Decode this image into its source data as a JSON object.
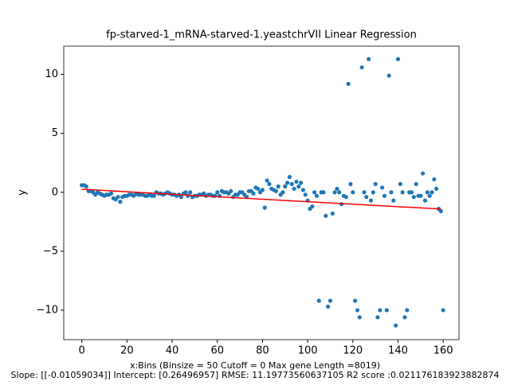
{
  "chart_data": {
    "type": "scatter",
    "title": "fp-starved-1_mRNA-starved-1.yeastchrVII Linear Regression",
    "xlabel": [
      "x:Bins  (Binsize = 50 Cutoff = 0 Max gene Length =8019)",
      "Slope: [[-0.01059034]] Intercept: [0.26496957] RMSE: 11.19773560637105 R2 score :0.021176183923882874"
    ],
    "ylabel": "y",
    "xlim": [
      -8,
      167
    ],
    "ylim": [
      -12.5,
      12.4
    ],
    "xticks": [
      0,
      20,
      40,
      60,
      80,
      100,
      120,
      140,
      160
    ],
    "yticks": [
      {
        "value": -10,
        "label": "−10"
      },
      {
        "value": -5,
        "label": "−5"
      },
      0,
      5,
      10
    ],
    "color": "#1f77b4",
    "x": [
      0,
      1,
      2,
      3,
      4,
      5,
      6,
      7,
      8,
      9,
      10,
      11,
      12,
      13,
      14,
      15,
      16,
      17,
      18,
      19,
      20,
      21,
      22,
      23,
      24,
      25,
      26,
      27,
      28,
      29,
      30,
      31,
      32,
      33,
      34,
      35,
      36,
      37,
      38,
      39,
      40,
      41,
      42,
      43,
      44,
      45,
      46,
      47,
      48,
      49,
      50,
      51,
      52,
      53,
      54,
      55,
      56,
      57,
      58,
      59,
      60,
      61,
      62,
      63,
      64,
      65,
      66,
      67,
      68,
      69,
      70,
      71,
      72,
      73,
      74,
      75,
      76,
      77,
      78,
      79,
      80,
      81,
      82,
      83,
      84,
      85,
      86,
      87,
      88,
      89,
      90,
      91,
      92,
      93,
      94,
      95,
      96,
      97,
      98,
      99,
      100,
      101,
      102,
      103,
      104,
      105,
      106,
      107,
      108,
      109,
      110,
      111,
      112,
      113,
      114,
      115,
      116,
      117,
      118,
      119,
      120,
      121,
      122,
      123,
      124,
      125,
      126,
      127,
      128,
      129,
      130,
      131,
      132,
      133,
      134,
      135,
      136,
      137,
      138,
      139,
      140,
      141,
      142,
      143,
      144,
      145,
      146,
      147,
      148,
      149,
      150,
      151,
      152,
      153,
      154,
      155,
      156,
      157,
      158,
      159,
      160
    ],
    "values": [
      0.6,
      0.6,
      0.5,
      0.1,
      0.1,
      0,
      -0.2,
      0,
      -0.1,
      -0.2,
      -0.3,
      -0.2,
      -0.2,
      -0.1,
      -0.5,
      -0.6,
      -0.4,
      -0.8,
      -0.4,
      -0.3,
      -0.3,
      -0.2,
      -0.2,
      -0.3,
      -0.1,
      -0.2,
      -0.2,
      -0.2,
      -0.3,
      -0.3,
      -0.2,
      -0.3,
      -0.3,
      0,
      -0.1,
      -0.1,
      -0.2,
      -0.1,
      0,
      -0.1,
      -0.2,
      -0.2,
      -0.3,
      -0.2,
      -0.4,
      -0.1,
      0,
      -0.3,
      0,
      -0.4,
      -0.3,
      -0.3,
      -0.2,
      -0.2,
      -0.1,
      -0.3,
      -0.2,
      -0.2,
      -0.3,
      -0.3,
      0,
      -0.3,
      0.1,
      0,
      0,
      -0.1,
      0.1,
      -0.4,
      -0.2,
      -0.2,
      0,
      0,
      -0.2,
      -0.4,
      0.1,
      0.1,
      -0.1,
      0.4,
      0.3,
      0,
      0.2,
      -1.3,
      1.0,
      0.7,
      0.3,
      0.2,
      0.1,
      0.5,
      -0.2,
      0,
      0.5,
      0.8,
      1.3,
      0.7,
      0.3,
      0.9,
      0.5,
      0.8,
      0.2,
      -0.2,
      -0.7,
      -1.4,
      -1.2,
      0,
      -0.3,
      -9.2,
      0,
      0,
      -2.0,
      -9.7,
      -9.2,
      -1.8,
      0,
      0.3,
      0,
      -1.0,
      -0.3,
      -0.4,
      9.2,
      0.7,
      0,
      -9.2,
      -10,
      -10.6,
      10.6,
      0,
      -0.4,
      11.3,
      -0.7,
      0,
      0.7,
      -10.6,
      -10,
      0.4,
      -0.3,
      -10,
      9.9,
      0,
      -0.7,
      -11.3,
      11.3,
      0.7,
      0,
      -10.6,
      -10,
      0,
      0,
      -0.4,
      0.7,
      -0.3,
      -0.3,
      1.6,
      -0.7,
      0,
      -0.3,
      0,
      1.1,
      0.3,
      -1.4,
      -1.6,
      -10
    ],
    "fit": {
      "x": [
        0,
        159
      ],
      "values": [
        0.26,
        -1.42
      ],
      "color": "#ff0000"
    }
  }
}
